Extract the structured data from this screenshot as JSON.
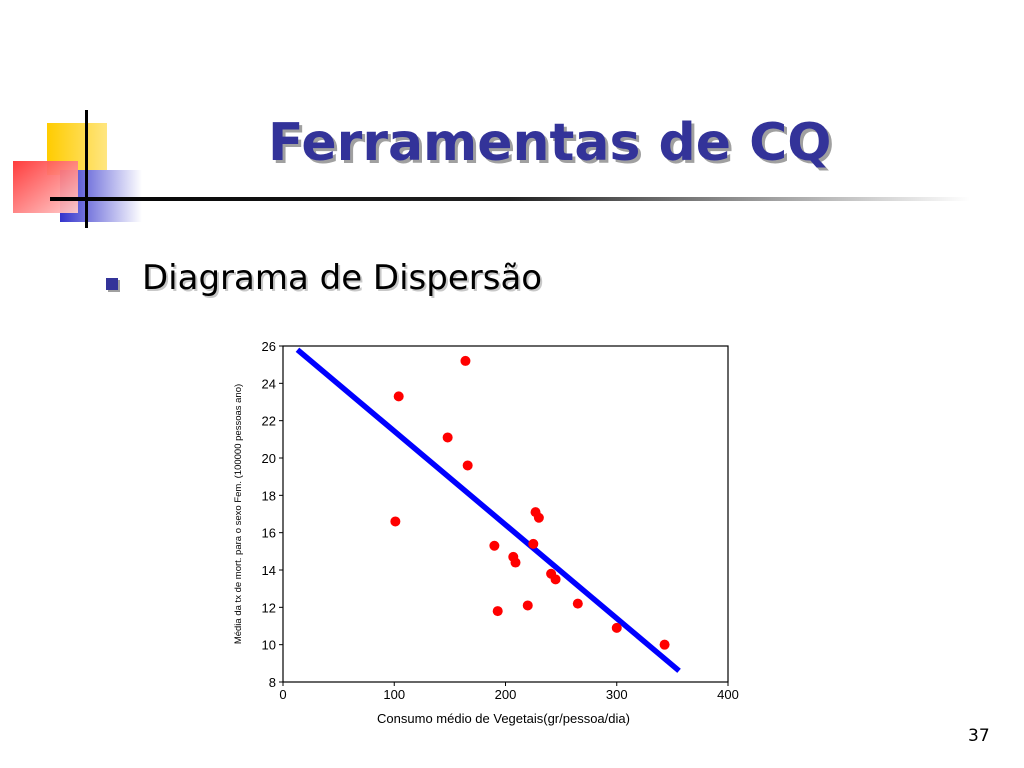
{
  "slide": {
    "title": "Ferramentas de CQ",
    "bullet": "Diagrama de Dispersão",
    "page_number": "37",
    "colors": {
      "title": "#333399",
      "yellow": "#FFCC00",
      "red": "#FF3333",
      "blue": "#3333CC"
    }
  },
  "chart_data": {
    "type": "scatter",
    "xlabel": "Consumo médio de Vegetais(gr/pessoa/dia)",
    "ylabel": "Média da tx de mort.  para o sexo Fem. (100000 pessoas ano)",
    "xlim": [
      0,
      400
    ],
    "ylim": [
      8,
      26
    ],
    "xticks": [
      0,
      100,
      200,
      300,
      400
    ],
    "yticks": [
      8,
      10,
      12,
      14,
      16,
      18,
      20,
      22,
      24,
      26
    ],
    "grid": false,
    "points": [
      {
        "x": 101,
        "y": 16.6
      },
      {
        "x": 104,
        "y": 23.3
      },
      {
        "x": 148,
        "y": 21.1
      },
      {
        "x": 164,
        "y": 25.2
      },
      {
        "x": 166,
        "y": 19.6
      },
      {
        "x": 190,
        "y": 15.3
      },
      {
        "x": 193,
        "y": 11.8
      },
      {
        "x": 207,
        "y": 14.7
      },
      {
        "x": 209,
        "y": 14.4
      },
      {
        "x": 220,
        "y": 12.1
      },
      {
        "x": 225,
        "y": 15.4
      },
      {
        "x": 227,
        "y": 17.1
      },
      {
        "x": 230,
        "y": 16.8
      },
      {
        "x": 241,
        "y": 13.8
      },
      {
        "x": 245,
        "y": 13.5
      },
      {
        "x": 265,
        "y": 12.2
      },
      {
        "x": 300,
        "y": 10.9
      },
      {
        "x": 343,
        "y": 10.0
      }
    ],
    "trend_line": {
      "x0": 13,
      "y0": 25.8,
      "x1": 356,
      "y1": 8.6
    },
    "point_color": "#FF0000",
    "line_color": "#0000FF"
  }
}
